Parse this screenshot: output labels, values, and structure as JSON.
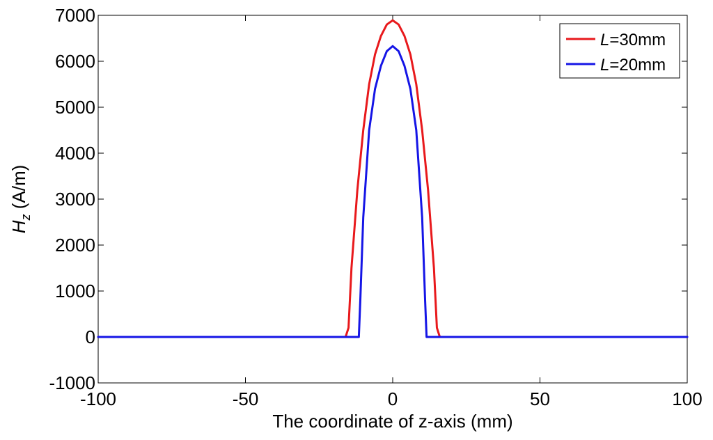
{
  "chart_data": {
    "type": "line",
    "title": "",
    "xlabel": "The coordinate of z-axis (mm)",
    "ylabel": {
      "symbol": "H",
      "subscript": "z",
      "unit": " (A/m)"
    },
    "xlim": [
      -100,
      100
    ],
    "ylim": [
      -1000,
      7000
    ],
    "xticks": [
      -100,
      -50,
      0,
      50,
      100
    ],
    "yticks": [
      -1000,
      0,
      1000,
      2000,
      3000,
      4000,
      5000,
      6000,
      7000
    ],
    "grid": false,
    "legend_position": "top-right",
    "series": [
      {
        "name": {
          "var": "L",
          "rest": "=30mm"
        },
        "color": "#e8191c",
        "points": [
          [
            -100,
            0
          ],
          [
            -17,
            0
          ],
          [
            -16,
            0
          ],
          [
            -15,
            200
          ],
          [
            -14,
            1500
          ],
          [
            -12,
            3200
          ],
          [
            -10,
            4500
          ],
          [
            -8,
            5500
          ],
          [
            -6,
            6150
          ],
          [
            -4,
            6550
          ],
          [
            -2,
            6800
          ],
          [
            0,
            6890
          ],
          [
            2,
            6800
          ],
          [
            4,
            6550
          ],
          [
            6,
            6150
          ],
          [
            8,
            5500
          ],
          [
            10,
            4500
          ],
          [
            12,
            3200
          ],
          [
            14,
            1500
          ],
          [
            15,
            200
          ],
          [
            16,
            0
          ],
          [
            17,
            0
          ],
          [
            100,
            0
          ]
        ]
      },
      {
        "name": {
          "var": "L",
          "rest": "=20mm"
        },
        "color": "#1515e6",
        "points": [
          [
            -100,
            0
          ],
          [
            -12,
            0
          ],
          [
            -11.5,
            0
          ],
          [
            -11,
            800
          ],
          [
            -10,
            2600
          ],
          [
            -8,
            4500
          ],
          [
            -6,
            5400
          ],
          [
            -4,
            5900
          ],
          [
            -2,
            6220
          ],
          [
            0,
            6330
          ],
          [
            2,
            6220
          ],
          [
            4,
            5900
          ],
          [
            6,
            5400
          ],
          [
            8,
            4500
          ],
          [
            10,
            2600
          ],
          [
            11,
            800
          ],
          [
            11.5,
            0
          ],
          [
            12,
            0
          ],
          [
            100,
            0
          ]
        ]
      }
    ]
  }
}
